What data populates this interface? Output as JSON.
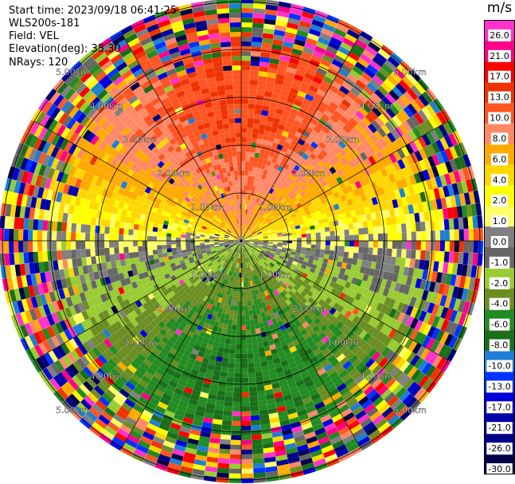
{
  "header": {
    "start_time": "Start time: 2023/09/18 06:41:25",
    "instrument": "WLS200s-181",
    "field": "Field: VEL",
    "elevation": "Elevation(deg): 35.30",
    "nrays": "NRays: 120"
  },
  "chart_data": {
    "type": "heatmap",
    "projection": "polar-ppi",
    "title": "",
    "xlabel": "",
    "ylabel": "",
    "grid": true,
    "range_rings_km": [
      1,
      2,
      3,
      4,
      5
    ],
    "ring_labels": [
      "1.00km",
      "2.00km",
      "3.00km",
      "4.00km",
      "5.00km"
    ],
    "n_rays": 120,
    "velocity_pattern": {
      "north_core_mps": 10,
      "south_core_mps": -8,
      "noise_beyond_km": 4.0
    },
    "colorbar": {
      "unit": "m/s",
      "position": "right",
      "levels": [
        26.0,
        21.0,
        17.0,
        13.0,
        10.0,
        8.0,
        6.0,
        4.0,
        2.0,
        1.0,
        0.0,
        -1.0,
        -2.0,
        -4.0,
        -6.0,
        -8.0,
        -10.0,
        -13.0,
        -17.0,
        -21.0,
        -26.0,
        -30.0
      ],
      "labels": [
        "26.0",
        "21.0",
        "17.0",
        "13.0",
        "10.0",
        "8.0",
        "6.0",
        "4.0",
        "2.0",
        "1.0",
        "0.0",
        "-1.0",
        "-2.0",
        "-4.0",
        "-6.0",
        "-8.0",
        "-10.0",
        "-13.0",
        "-17.0",
        "-21.0",
        "-26.0",
        "-30.0"
      ],
      "colors": [
        "#ff33cc",
        "#ff0088",
        "#ff0000",
        "#ee3300",
        "#ff5522",
        "#ff8866",
        "#ffaa00",
        "#ffd700",
        "#ffff00",
        "#ffff66",
        "#808080",
        "#666666",
        "#99cc33",
        "#6b8e23",
        "#228b22",
        "#1a6e1a",
        "#1e7fd4",
        "#0033ff",
        "#0000dd",
        "#0000aa",
        "#000088",
        "#00004a"
      ]
    }
  }
}
